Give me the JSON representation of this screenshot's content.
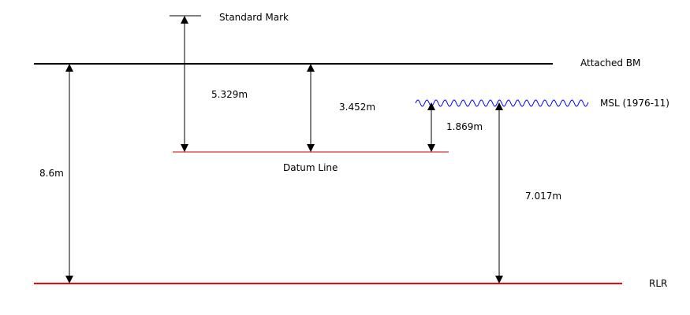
{
  "labels": {
    "standard_mark": "Standard Mark",
    "attached_bm": "Attached BM",
    "msl": "MSL (1976-11)",
    "datum_line": "Datum Line",
    "rlr": "RLR"
  },
  "measurements": {
    "standard_mark_to_datum": "5.329m",
    "attached_bm_to_datum": "3.452m",
    "msl_to_datum": "1.869m",
    "attached_bm_to_rlr": "8.6m",
    "msl_to_rlr": "7.017m"
  },
  "colors": {
    "attached_bm_line": "#000000",
    "datum_line": "#cc0000",
    "rlr_line": "#ff0000",
    "msl_wave": "#0000ff",
    "arrow": "#000000"
  }
}
